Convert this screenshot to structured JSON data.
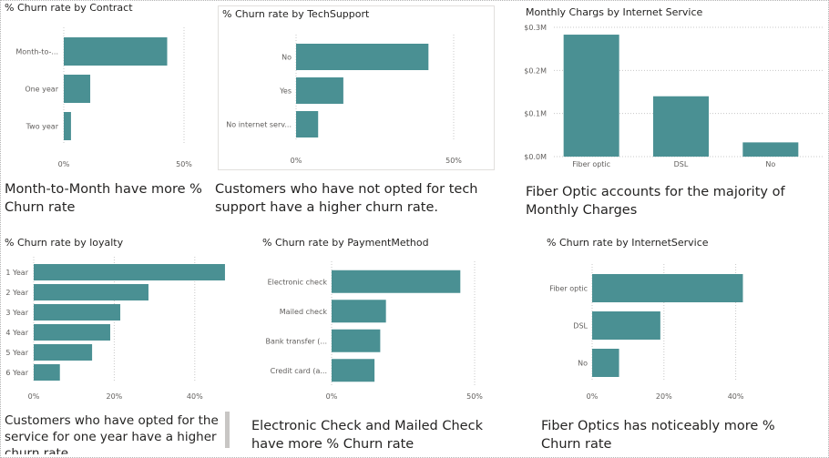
{
  "colors": {
    "bar": "#4a9093",
    "grid": "#c8c8c8",
    "tick": "#605e5c"
  },
  "chart_data": [
    {
      "id": "contract",
      "type": "bar",
      "orientation": "horizontal",
      "title": "% Churn rate by Contract",
      "categories": [
        "Month-to-...",
        "One year",
        "Two year"
      ],
      "values": [
        43,
        11,
        3
      ],
      "xlim": [
        0,
        50
      ],
      "xticks": [
        "0%",
        "50%"
      ],
      "grid": true
    },
    {
      "id": "techsupport",
      "type": "bar",
      "orientation": "horizontal",
      "title": "% Churn rate by TechSupport",
      "categories": [
        "No",
        "Yes",
        "No internet serv..."
      ],
      "values": [
        42,
        15,
        7
      ],
      "xlim": [
        0,
        50
      ],
      "xticks": [
        "0%",
        "50%"
      ],
      "grid": true
    },
    {
      "id": "monthly",
      "type": "bar",
      "orientation": "vertical",
      "title": "Monthly Chargs by Internet Service",
      "categories": [
        "Fiber optic",
        "DSL",
        "No"
      ],
      "values": [
        0.283,
        0.14,
        0.033
      ],
      "ylim": [
        0,
        0.3
      ],
      "yticks": [
        "$0.0M",
        "$0.1M",
        "$0.2M",
        "$0.3M"
      ],
      "grid": true
    },
    {
      "id": "loyalty",
      "type": "bar",
      "orientation": "horizontal",
      "title": "% Churn rate by loyalty",
      "categories": [
        "1 Year",
        "2 Year",
        "3 Year",
        "4 Year",
        "5 Year",
        "6 Year"
      ],
      "values": [
        47.5,
        28.5,
        21.5,
        19,
        14.5,
        6.5
      ],
      "xlim": [
        0,
        50
      ],
      "xticks": [
        "0%",
        "20%",
        "40%"
      ],
      "grid": true
    },
    {
      "id": "payment",
      "type": "bar",
      "orientation": "horizontal",
      "title": "% Churn rate by PaymentMethod",
      "categories": [
        "Electronic check",
        "Mailed check",
        "Bank transfer (...",
        "Credit card (a..."
      ],
      "values": [
        45,
        19,
        17,
        15
      ],
      "xlim": [
        0,
        50
      ],
      "xticks": [
        "0%",
        "50%"
      ],
      "grid": true
    },
    {
      "id": "internet",
      "type": "bar",
      "orientation": "horizontal",
      "title": "% Churn rate by InternetService",
      "categories": [
        "Fiber optic",
        "DSL",
        "No"
      ],
      "values": [
        42,
        19,
        7.5
      ],
      "xlim": [
        0,
        50
      ],
      "xticks": [
        "0%",
        "20%",
        "40%"
      ],
      "grid": true
    }
  ],
  "narratives": {
    "contract": "Month-to-Month have more % Churn rate",
    "techsupport": "Customers who have not opted for tech support have a higher churn rate.",
    "monthly": "Fiber Optic accounts for the majority of Monthly Charges",
    "loyalty": "Customers who have opted for the service for one year have a higher churn rate",
    "payment": "Electronic Check and Mailed Check have more % Churn rate",
    "internet": "Fiber Optics has noticeably more % Churn rate"
  }
}
